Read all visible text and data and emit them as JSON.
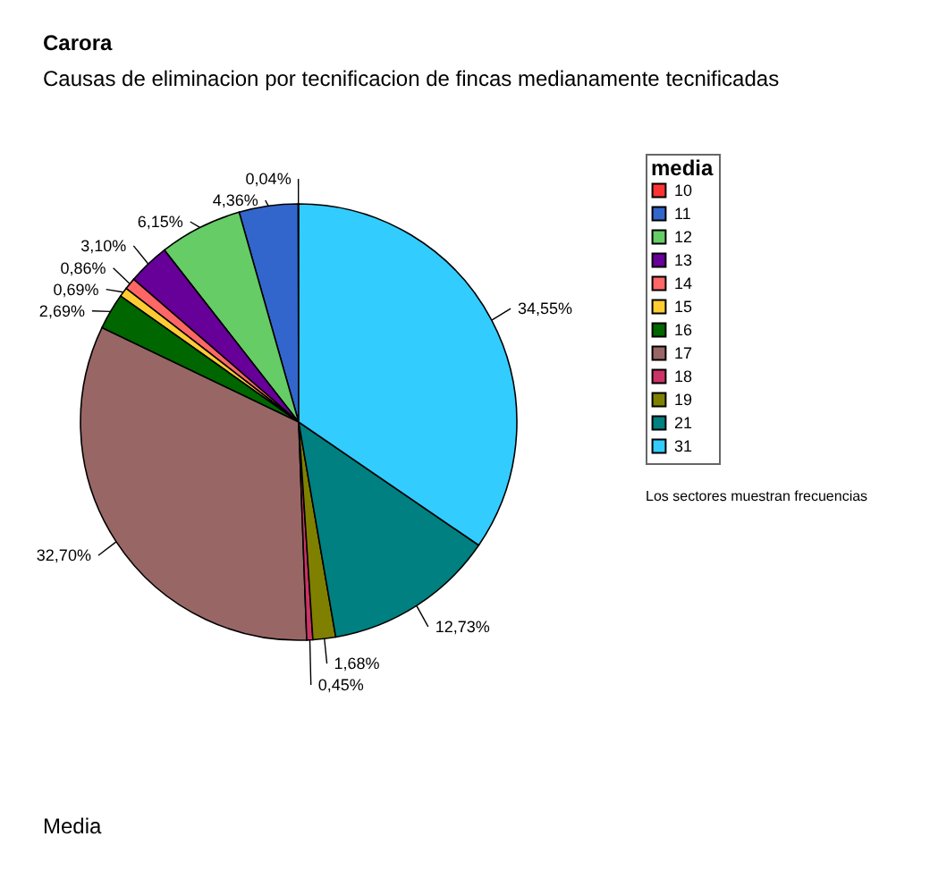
{
  "chart_data": {
    "type": "pie",
    "title": "Carora",
    "subtitle": "Causas de eliminacion por tecnificacion de fincas medianamente tecnificadas",
    "legend_title": "media",
    "legend": "right",
    "categories": [
      "10",
      "11",
      "12",
      "13",
      "14",
      "15",
      "16",
      "17",
      "18",
      "19",
      "21",
      "31"
    ],
    "values": [
      0.04,
      4.36,
      6.15,
      3.1,
      0.86,
      0.69,
      2.69,
      32.7,
      0.45,
      1.68,
      12.73,
      34.55
    ],
    "value_labels": [
      "0,04%",
      "4,36%",
      "6,15%",
      "3,10%",
      "0,86%",
      "0,69%",
      "2,69%",
      "32,70%",
      "0,45%",
      "1,68%",
      "12,73%",
      "34,55%"
    ],
    "colors": [
      "#ff3333",
      "#3366cc",
      "#66cc66",
      "#660099",
      "#ff6666",
      "#ffcc33",
      "#006600",
      "#996666",
      "#cc3366",
      "#808000",
      "#008080",
      "#33ccff"
    ],
    "annotations": [
      "Los sectores muestran frecuencias",
      "Media"
    ]
  }
}
